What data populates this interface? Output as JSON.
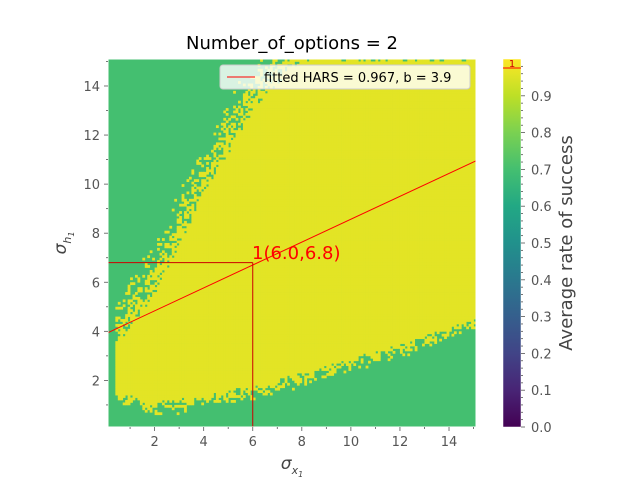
{
  "chart_data": {
    "type": "heatmap",
    "title": "Number_of_options = 2",
    "xlabel": "σ_x1",
    "ylabel": "σ_h1",
    "xlim": [
      0.1,
      15.1
    ],
    "ylim": [
      0.1,
      15.1
    ],
    "x_ticks": [
      2,
      4,
      6,
      8,
      10,
      12,
      14
    ],
    "y_ticks": [
      2,
      4,
      6,
      8,
      10,
      12,
      14
    ],
    "heatmap": {
      "background_value": 0.7,
      "high_value": 0.96,
      "region_description_values": {
        "lower_boundary_at_x": [
          [
            0.5,
            1.5
          ],
          [
            2,
            1.1
          ],
          [
            4,
            1.4
          ],
          [
            6,
            1.8
          ],
          [
            8,
            2.3
          ],
          [
            10,
            2.9
          ],
          [
            12,
            3.5
          ],
          [
            15,
            4.5
          ]
        ],
        "upper_boundary_at_x": [
          [
            0.5,
            3.5
          ],
          [
            2,
            5.5
          ],
          [
            4,
            9.5
          ],
          [
            6,
            13.0
          ],
          [
            8,
            15.0
          ],
          [
            15,
            15.0
          ]
        ]
      }
    },
    "fit_line": {
      "label": "fitted HARS = 0.967, b = 3.9",
      "slope": 0.467,
      "intercept": 3.9,
      "color": "#ff0000"
    },
    "marker_point": {
      "label": "1(6.0,6.8)",
      "x": 6.0,
      "y": 6.8
    },
    "legend": {
      "position": "top-right",
      "entries": [
        "fitted HARS = 0.967, b = 3.9"
      ]
    },
    "colorbar": {
      "label": "Average rate of success",
      "colormap": "viridis",
      "range": [
        0.0,
        1.0
      ],
      "ticks": [
        "0.0",
        "0.1",
        "0.2",
        "0.3",
        "0.4",
        "0.5",
        "0.6",
        "0.7",
        "0.8",
        "0.9"
      ],
      "marker_label": "1",
      "marker_value": 1.0
    }
  }
}
